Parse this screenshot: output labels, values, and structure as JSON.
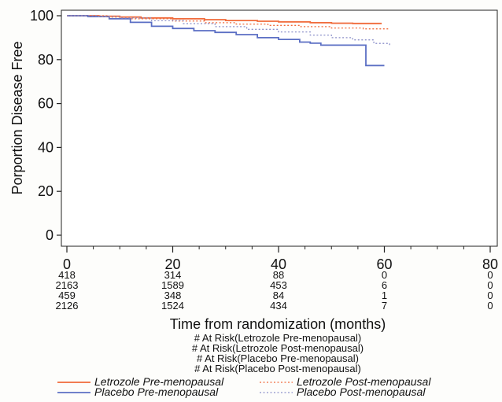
{
  "chart_data": {
    "type": "line",
    "title": "",
    "xlabel": "Time from randomization (months)",
    "ylabel": "Porportion Disease Free",
    "xlim": [
      0,
      80
    ],
    "ylim": [
      0,
      100
    ],
    "x_ticks": [
      0,
      20,
      40,
      60,
      80
    ],
    "y_ticks": [
      0,
      20,
      40,
      60,
      80,
      100
    ],
    "grid": false,
    "series": [
      {
        "name": "Letrozole Pre-menopausal",
        "color": "#f06a3a",
        "style": "solid",
        "points": [
          [
            0,
            100
          ],
          [
            6,
            99.8
          ],
          [
            10,
            99.4
          ],
          [
            14,
            99
          ],
          [
            20,
            98.6
          ],
          [
            26,
            98.2
          ],
          [
            30,
            97.8
          ],
          [
            36,
            97.5
          ],
          [
            40,
            97.2
          ],
          [
            46,
            96.8
          ],
          [
            50,
            96.6
          ],
          [
            54,
            96.5
          ],
          [
            59.5,
            96.5
          ]
        ]
      },
      {
        "name": "Placebo Pre-menopausal",
        "color": "#5b6fc4",
        "style": "solid",
        "points": [
          [
            0,
            100
          ],
          [
            4,
            99.6
          ],
          [
            8,
            98.6
          ],
          [
            12,
            97
          ],
          [
            16,
            95.2
          ],
          [
            20,
            94.2
          ],
          [
            24,
            93.2
          ],
          [
            28,
            92.4
          ],
          [
            32,
            91.4
          ],
          [
            36,
            90
          ],
          [
            40,
            89.2
          ],
          [
            44,
            88
          ],
          [
            46,
            87.5
          ],
          [
            48,
            86.6
          ],
          [
            52,
            86.6
          ],
          [
            56.5,
            86.6
          ],
          [
            56.5,
            77.3
          ],
          [
            60,
            77.3
          ]
        ]
      },
      {
        "name": "Letrozole Post-menopausal",
        "color": "#f06a3a",
        "style": "dotted",
        "points": [
          [
            0,
            100
          ],
          [
            8,
            99.4
          ],
          [
            12,
            98.6
          ],
          [
            20,
            97.6
          ],
          [
            26,
            96.8
          ],
          [
            32,
            96.2
          ],
          [
            38,
            95.6
          ],
          [
            44,
            95
          ],
          [
            50,
            94.4
          ],
          [
            56,
            94
          ],
          [
            61,
            94
          ]
        ]
      },
      {
        "name": "Placebo Post-menopausal",
        "color": "#8b8fc9",
        "style": "dotted",
        "points": [
          [
            0,
            100
          ],
          [
            6,
            99.6
          ],
          [
            10,
            99
          ],
          [
            16,
            97.8
          ],
          [
            22,
            96.4
          ],
          [
            28,
            95
          ],
          [
            34,
            93.8
          ],
          [
            40,
            92.6
          ],
          [
            46,
            91.2
          ],
          [
            50,
            90
          ],
          [
            54,
            89
          ],
          [
            58,
            87.4
          ],
          [
            61,
            86.4
          ]
        ]
      }
    ],
    "at_risk": {
      "times": [
        0,
        20,
        40,
        60,
        80
      ],
      "rows": [
        {
          "label": "# At Risk(Letrozole Pre-menopausal)",
          "values": [
            "418",
            "314",
            "88",
            "0",
            "0"
          ]
        },
        {
          "label": "# At Risk(Letrozole Post-menopausal)",
          "values": [
            "2163",
            "1589",
            "453",
            "6",
            "0"
          ]
        },
        {
          "label": "# At Risk(Placebo Pre-menopausal)",
          "values": [
            "459",
            "348",
            "84",
            "1",
            "0"
          ]
        },
        {
          "label": "# At Risk(Placebo Post-menopausal)",
          "values": [
            "2126",
            "1524",
            "434",
            "7",
            "0"
          ]
        }
      ]
    },
    "legend": {
      "placement": "bottom",
      "items": [
        {
          "label": "Letrozole Pre-menopausal",
          "color": "#f06a3a",
          "style": "solid"
        },
        {
          "label": "Letrozole Post-menopausal",
          "color": "#f06a3a",
          "style": "dotted"
        },
        {
          "label": "Placebo Pre-menopausal",
          "color": "#5b6fc4",
          "style": "solid"
        },
        {
          "label": "Placebo Post-menopausal",
          "color": "#8b8fc9",
          "style": "dotted"
        }
      ]
    }
  }
}
